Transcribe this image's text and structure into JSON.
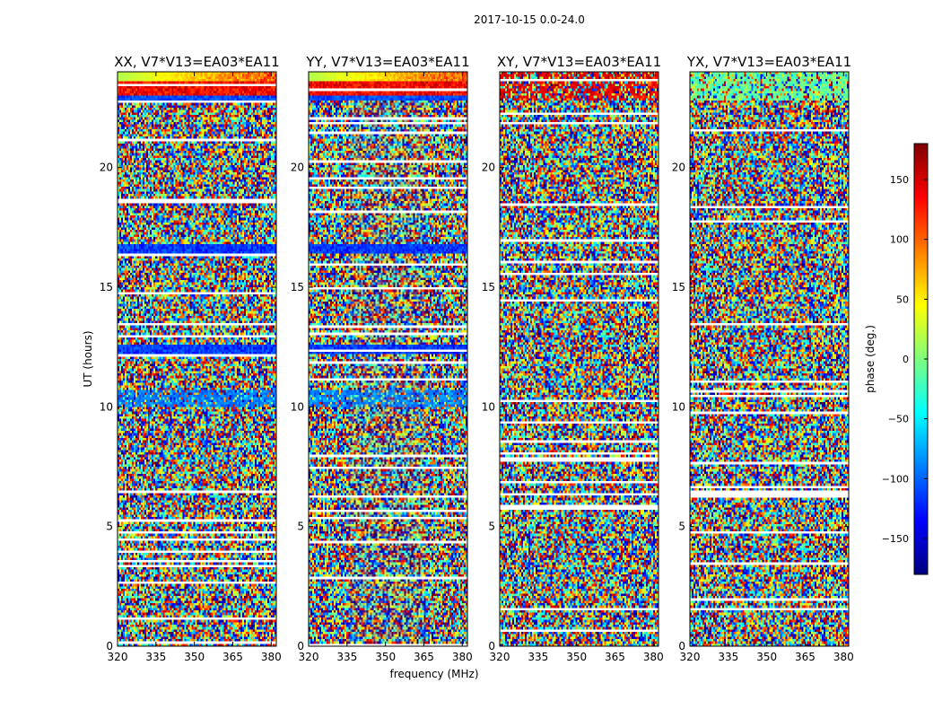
{
  "figure": {
    "suptitle": "2017-10-15 0.0-24.0",
    "xlabel": "frequency (MHz)",
    "ylabel": "UT (hours)"
  },
  "colorbar": {
    "label": "phase (deg.)",
    "ticks": [
      -150,
      -100,
      -50,
      0,
      50,
      100,
      150
    ],
    "tick_labels": [
      "−150",
      "−100",
      "−50",
      "0",
      "50",
      "100",
      "150"
    ],
    "range": [
      -180,
      180
    ],
    "colormap": "jet",
    "colors": [
      "#00007f",
      "#0000ff",
      "#007fff",
      "#00ffff",
      "#7fff7f",
      "#ffff00",
      "#ff7f00",
      "#ff0000",
      "#7f0000"
    ]
  },
  "chart_data": [
    {
      "type": "heatmap",
      "title": "XX, V7*V13=EA03*EA11",
      "xlim": [
        320,
        382
      ],
      "ylim": [
        0,
        24
      ],
      "x_ticks": [
        320,
        335,
        350,
        365,
        380
      ],
      "x_tick_labels": [
        "320",
        "335",
        "350",
        "365",
        "380"
      ],
      "y_ticks": [
        0,
        5,
        10,
        15,
        20
      ],
      "y_tick_labels": [
        "0",
        "5",
        "10",
        "15",
        "20"
      ],
      "values": "phase (deg.) vs frequency and UT; mostly noise, coherent bands near 10.2, 12.4, 16.6 and 22.8-24 UT"
    },
    {
      "type": "heatmap",
      "title": "YY, V7*V13=EA03*EA11",
      "xlim": [
        320,
        382
      ],
      "ylim": [
        0,
        24
      ],
      "x_ticks": [
        320,
        335,
        350,
        365,
        380
      ],
      "x_tick_labels": [
        "320",
        "335",
        "350",
        "365",
        "380"
      ],
      "y_ticks": [
        0,
        5,
        10,
        15,
        20
      ],
      "y_tick_labels": [
        "0",
        "5",
        "10",
        "15",
        "20"
      ],
      "values": "phase (deg.) vs frequency and UT; coherent bands near 10.2, 12.4, 16.6 and 22.8-24 UT"
    },
    {
      "type": "heatmap",
      "title": "XY, V7*V13=EA03*EA11",
      "xlim": [
        320,
        382
      ],
      "ylim": [
        0,
        24
      ],
      "x_ticks": [
        320,
        335,
        350,
        365,
        380
      ],
      "x_tick_labels": [
        "320",
        "335",
        "350",
        "365",
        "380"
      ],
      "y_ticks": [
        0,
        5,
        10,
        15,
        20
      ],
      "y_tick_labels": [
        "0",
        "5",
        "10",
        "15",
        "20"
      ],
      "values": "phase (deg.) vs frequency and UT; mostly noise, partially coherent near 22.8-24 UT"
    },
    {
      "type": "heatmap",
      "title": "YX, V7*V13=EA03*EA11",
      "xlim": [
        320,
        382
      ],
      "ylim": [
        0,
        24
      ],
      "x_ticks": [
        320,
        335,
        350,
        365,
        380
      ],
      "x_tick_labels": [
        "320",
        "335",
        "350",
        "365",
        "380"
      ],
      "y_ticks": [
        0,
        5,
        10,
        15,
        20
      ],
      "y_tick_labels": [
        "0",
        "5",
        "10",
        "15",
        "20"
      ],
      "values": "phase (deg.) vs frequency and UT; mostly noise, greenish band near 22.8-24 UT"
    }
  ]
}
